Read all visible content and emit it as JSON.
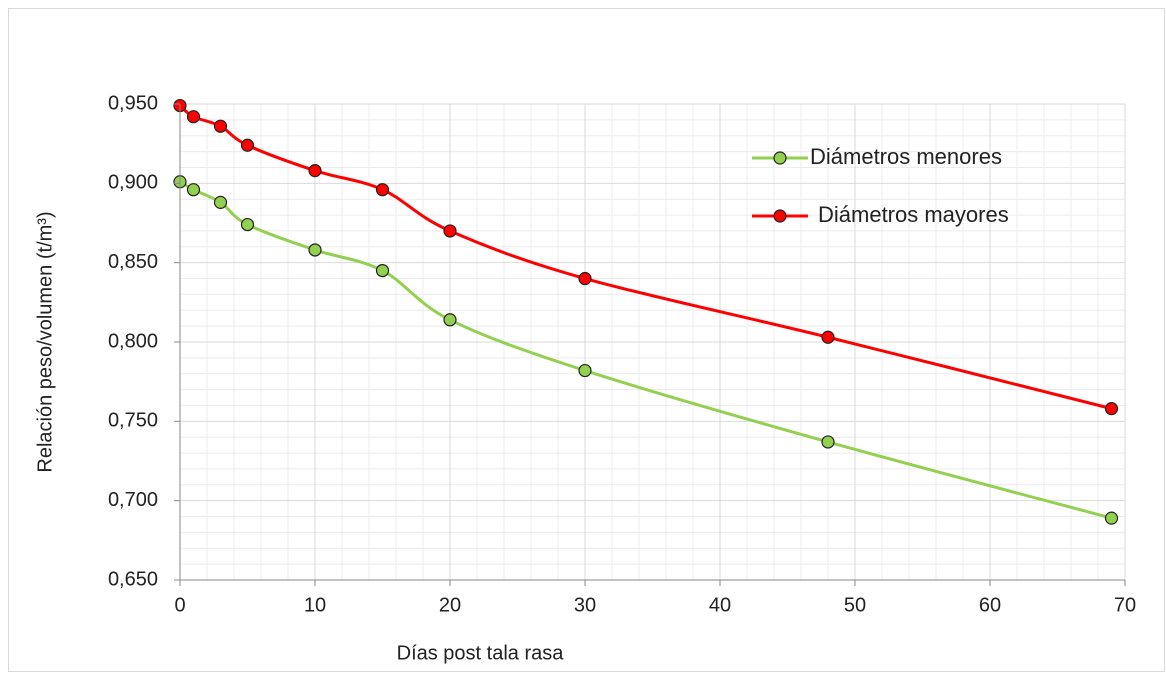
{
  "chart_data": {
    "type": "line",
    "xlabel": "Días post tala rasa",
    "ylabel": "Relación peso/volumen (t/m³)",
    "x": [
      0,
      1,
      3,
      5,
      10,
      15,
      20,
      30,
      48,
      69
    ],
    "series": [
      {
        "name": "Diámetros menores",
        "color": "#92d050",
        "values": [
          0.901,
          0.896,
          0.888,
          0.874,
          0.858,
          0.845,
          0.814,
          0.782,
          0.737,
          0.689
        ]
      },
      {
        "name": "Diámetros mayores",
        "color": "#ff0000",
        "values": [
          0.949,
          0.942,
          0.936,
          0.924,
          0.908,
          0.896,
          0.87,
          0.84,
          0.803,
          0.758
        ]
      }
    ],
    "xlim": [
      0,
      70
    ],
    "xticks": [
      0,
      10,
      20,
      30,
      40,
      50,
      60,
      70
    ],
    "ylim": [
      0.65,
      0.95
    ],
    "yticks": [
      {
        "value": 0.65,
        "label": "0,650"
      },
      {
        "value": 0.7,
        "label": "0,700"
      },
      {
        "value": 0.75,
        "label": "0,750"
      },
      {
        "value": 0.8,
        "label": "0,800"
      },
      {
        "value": 0.85,
        "label": "0,850"
      },
      {
        "value": 0.9,
        "label": "0,900"
      },
      {
        "value": 0.95,
        "label": "0,950"
      }
    ],
    "grid": true,
    "minor_grid": true,
    "smooth": true,
    "legend": "upper right"
  }
}
